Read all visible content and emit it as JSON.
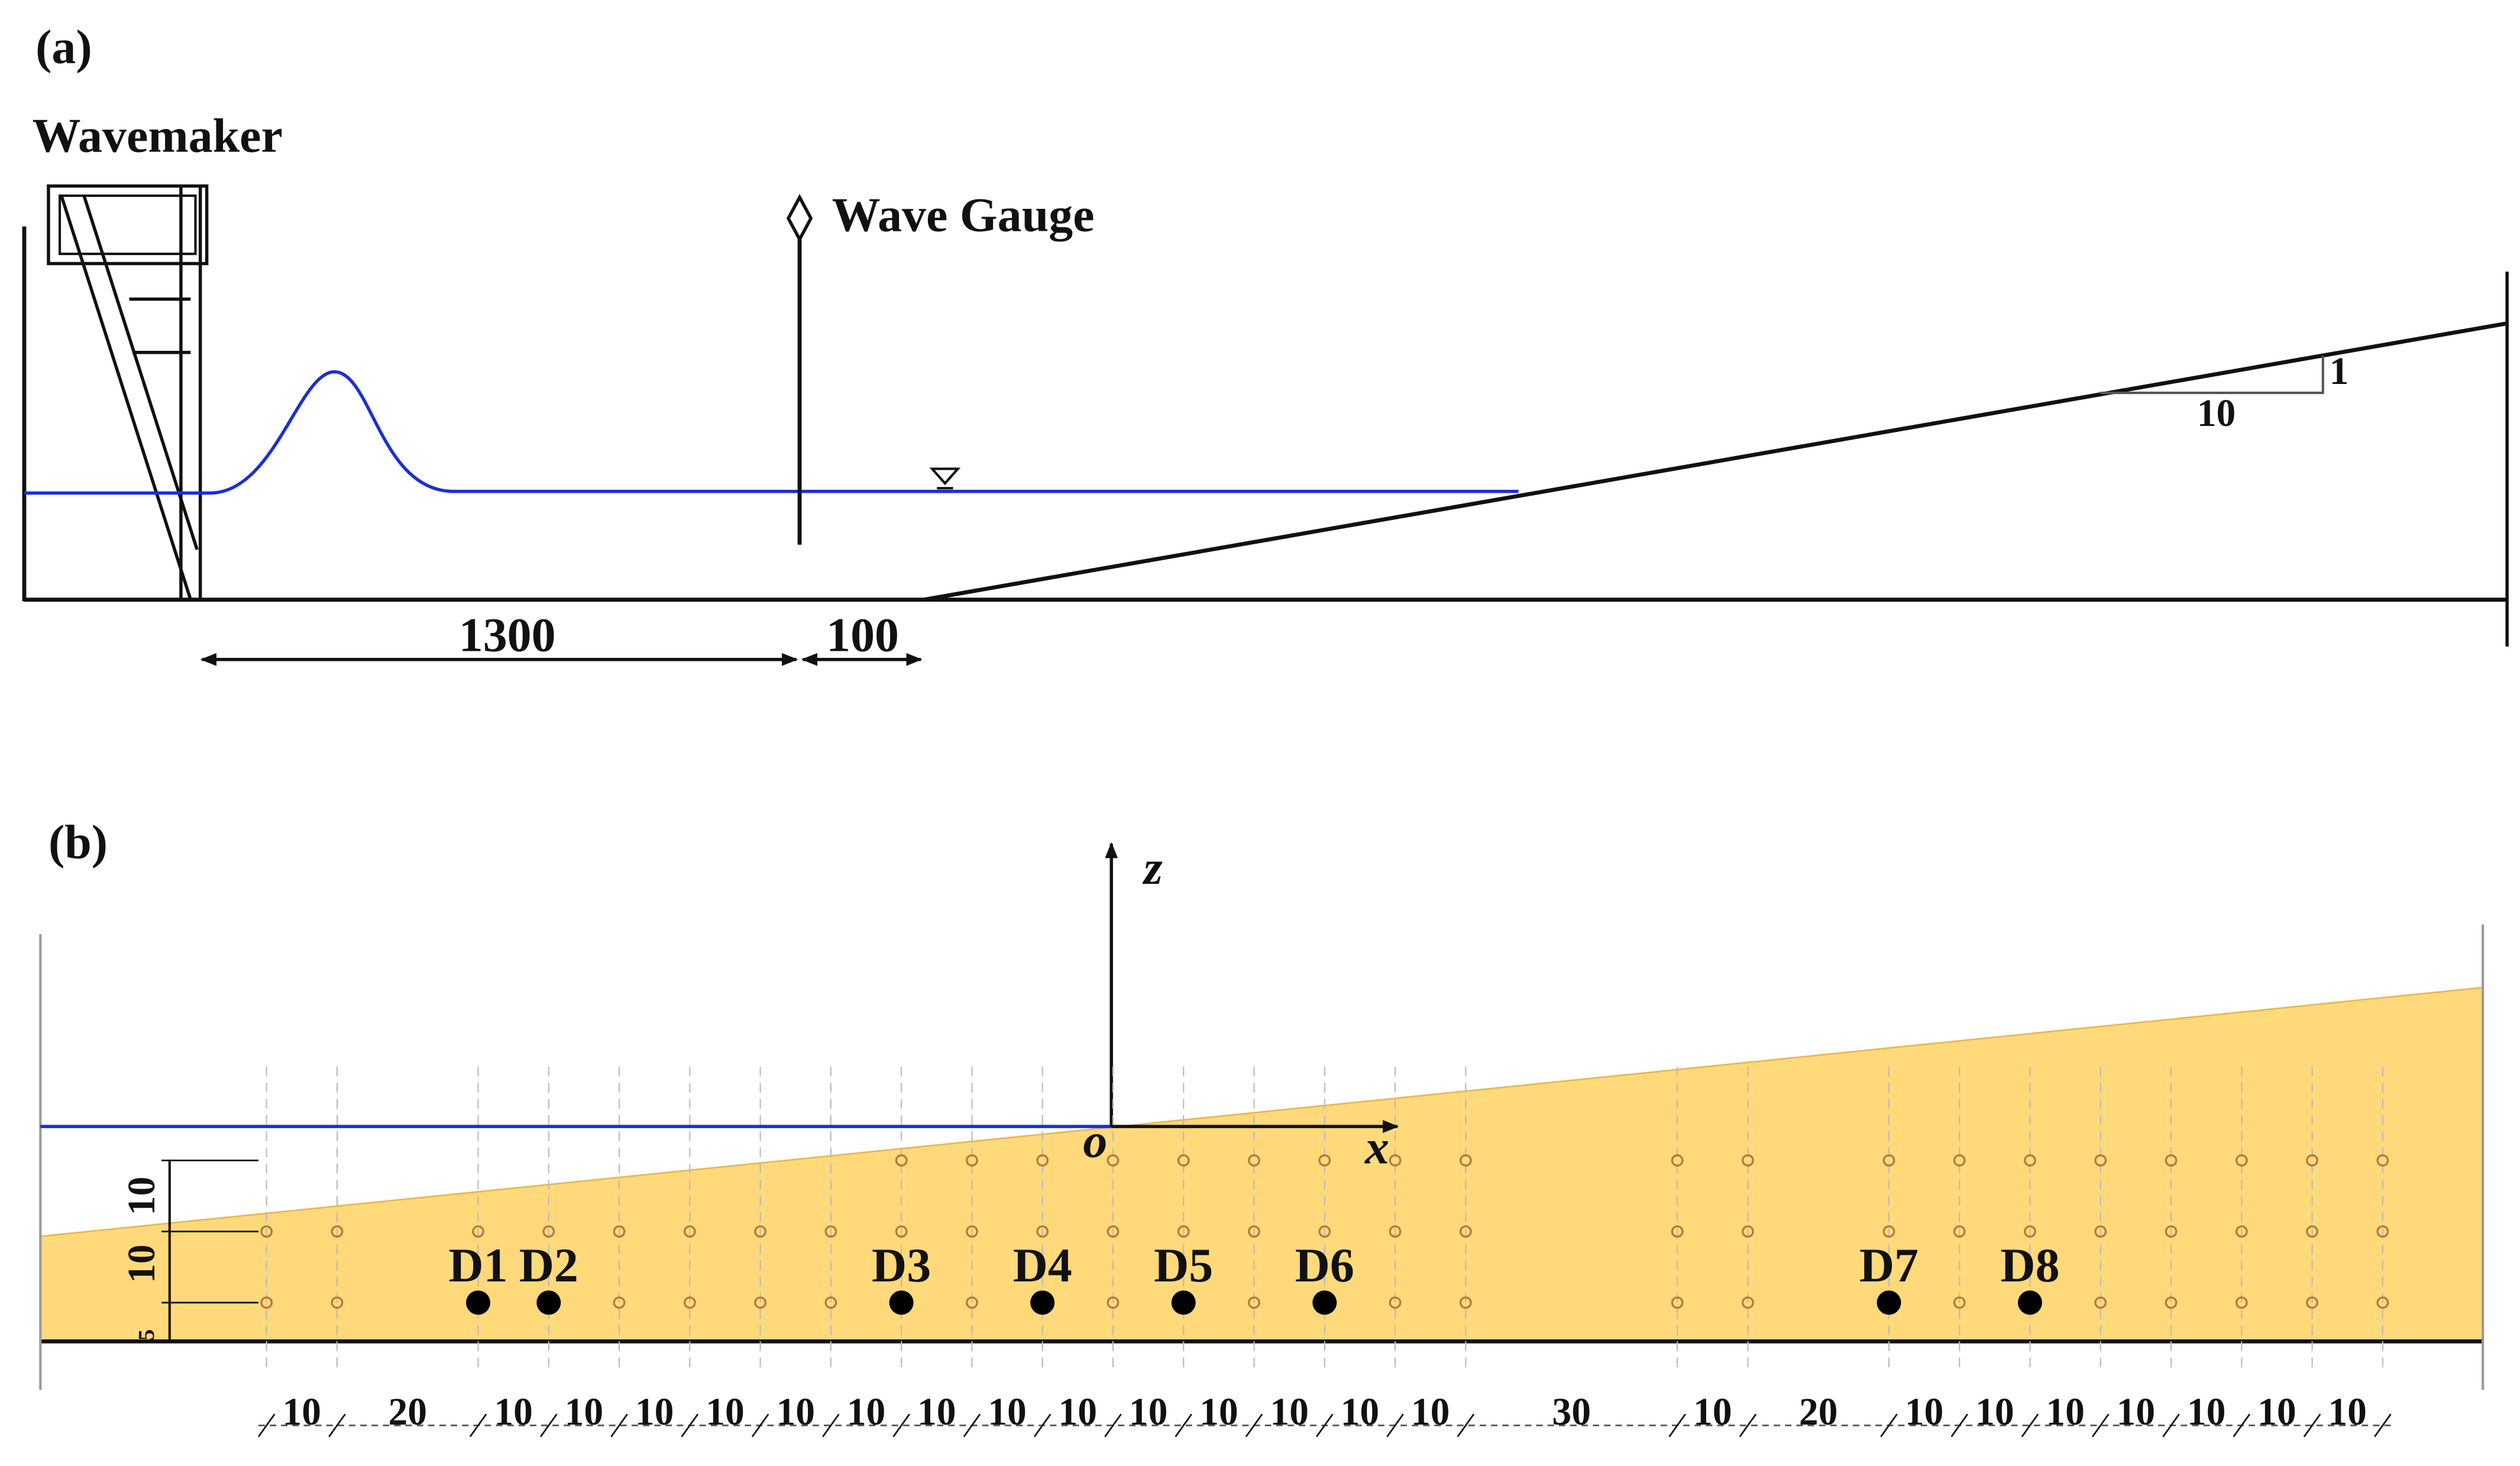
{
  "panel_a": {
    "label": "(a)",
    "wavemaker": "Wavemaker",
    "wave_gauge": "Wave Gauge",
    "slope_rise": "1",
    "slope_run": "10",
    "distance_1": "1300",
    "distance_2": "100"
  },
  "panel_b": {
    "label": "(b)",
    "axis_z": "z",
    "axis_x": "x",
    "origin": "o",
    "gauges": [
      "D1",
      "D2",
      "D3",
      "D4",
      "D5",
      "D6",
      "D7",
      "D8"
    ],
    "vertical_spacings": [
      "10",
      "10",
      "5"
    ],
    "horizontal_spacings": [
      10,
      20,
      10,
      10,
      10,
      10,
      10,
      10,
      10,
      10,
      10,
      10,
      10,
      10,
      10,
      10,
      30,
      10,
      20,
      10,
      10,
      10,
      10,
      10,
      10,
      10
    ]
  }
}
